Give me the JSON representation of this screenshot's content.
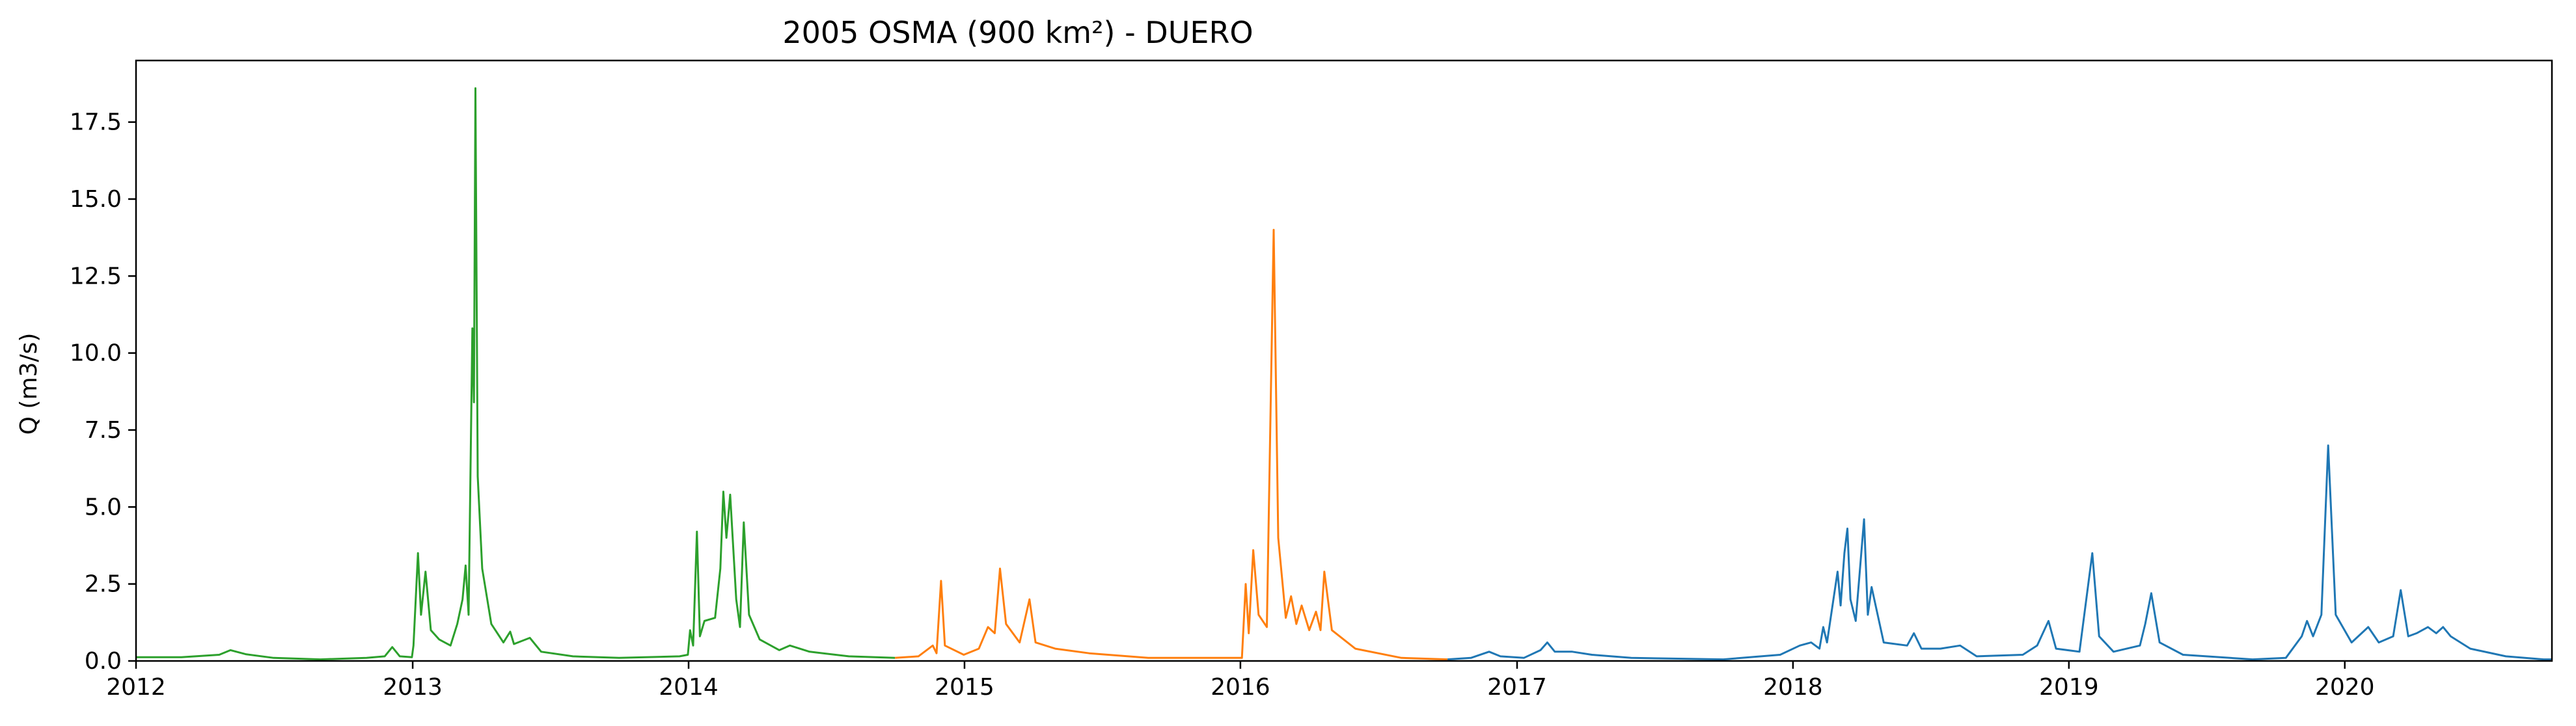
{
  "chart_data": {
    "type": "line",
    "title": "2005 OSMA (900 km²) - DUERO",
    "xlabel": "",
    "ylabel": "Q (m3/s)",
    "xlim": [
      "2012-01-01",
      "2020-10-01"
    ],
    "ylim": [
      0,
      19.5
    ],
    "x_ticks": [
      "2012",
      "2013",
      "2014",
      "2015",
      "2016",
      "2017",
      "2018",
      "2019",
      "2020"
    ],
    "y_ticks": [
      "0.0",
      "2.5",
      "5.0",
      "7.5",
      "10.0",
      "12.5",
      "15.0",
      "17.5"
    ],
    "grid": false,
    "legend": "none",
    "series": [
      {
        "color": "#2ca02c",
        "points": [
          [
            "2012-01-01",
            0.12
          ],
          [
            "2012-03-01",
            0.12
          ],
          [
            "2012-04-20",
            0.2
          ],
          [
            "2012-05-05",
            0.35
          ],
          [
            "2012-05-25",
            0.22
          ],
          [
            "2012-07-01",
            0.1
          ],
          [
            "2012-09-01",
            0.05
          ],
          [
            "2012-11-01",
            0.1
          ],
          [
            "2012-11-25",
            0.15
          ],
          [
            "2012-12-05",
            0.45
          ],
          [
            "2012-12-15",
            0.15
          ],
          [
            "2012-12-31",
            0.12
          ],
          [
            "2013-01-02",
            0.5
          ],
          [
            "2013-01-08",
            3.5
          ],
          [
            "2013-01-12",
            1.5
          ],
          [
            "2013-01-18",
            2.9
          ],
          [
            "2013-01-25",
            1.0
          ],
          [
            "2013-02-05",
            0.7
          ],
          [
            "2013-02-20",
            0.5
          ],
          [
            "2013-03-01",
            1.2
          ],
          [
            "2013-03-08",
            2.0
          ],
          [
            "2013-03-12",
            3.1
          ],
          [
            "2013-03-16",
            1.5
          ],
          [
            "2013-03-21",
            10.8
          ],
          [
            "2013-03-23",
            8.4
          ],
          [
            "2013-03-25",
            18.6
          ],
          [
            "2013-03-28",
            6.0
          ],
          [
            "2013-04-03",
            3.0
          ],
          [
            "2013-04-15",
            1.2
          ],
          [
            "2013-05-01",
            0.6
          ],
          [
            "2013-05-10",
            0.95
          ],
          [
            "2013-05-15",
            0.55
          ],
          [
            "2013-06-05",
            0.75
          ],
          [
            "2013-06-20",
            0.3
          ],
          [
            "2013-08-01",
            0.15
          ],
          [
            "2013-10-01",
            0.1
          ],
          [
            "2013-12-20",
            0.15
          ],
          [
            "2013-12-31",
            0.2
          ],
          [
            "2014-01-03",
            1.0
          ],
          [
            "2014-01-07",
            0.5
          ],
          [
            "2014-01-12",
            4.2
          ],
          [
            "2014-01-16",
            0.8
          ],
          [
            "2014-01-22",
            1.3
          ],
          [
            "2014-02-05",
            1.4
          ],
          [
            "2014-02-12",
            3.0
          ],
          [
            "2014-02-16",
            5.5
          ],
          [
            "2014-02-20",
            4.0
          ],
          [
            "2014-02-25",
            5.4
          ],
          [
            "2014-03-05",
            2.0
          ],
          [
            "2014-03-10",
            1.1
          ],
          [
            "2014-03-15",
            4.5
          ],
          [
            "2014-03-22",
            1.5
          ],
          [
            "2014-04-05",
            0.7
          ],
          [
            "2014-05-01",
            0.35
          ],
          [
            "2014-05-15",
            0.5
          ],
          [
            "2014-06-10",
            0.3
          ],
          [
            "2014-08-01",
            0.15
          ],
          [
            "2014-10-01",
            0.1
          ]
        ]
      },
      {
        "color": "#ff7f0e",
        "points": [
          [
            "2014-10-01",
            0.1
          ],
          [
            "2014-11-01",
            0.15
          ],
          [
            "2014-11-20",
            0.5
          ],
          [
            "2014-11-25",
            0.25
          ],
          [
            "2014-12-01",
            2.6
          ],
          [
            "2014-12-06",
            0.5
          ],
          [
            "2014-12-31",
            0.2
          ],
          [
            "2015-01-20",
            0.4
          ],
          [
            "2015-02-01",
            1.1
          ],
          [
            "2015-02-10",
            0.9
          ],
          [
            "2015-02-17",
            3.0
          ],
          [
            "2015-02-25",
            1.2
          ],
          [
            "2015-03-15",
            0.6
          ],
          [
            "2015-03-28",
            2.0
          ],
          [
            "2015-04-05",
            0.6
          ],
          [
            "2015-05-01",
            0.4
          ],
          [
            "2015-06-15",
            0.25
          ],
          [
            "2015-09-01",
            0.1
          ],
          [
            "2015-12-31",
            0.1
          ],
          [
            "2016-01-03",
            0.1
          ],
          [
            "2016-01-08",
            2.5
          ],
          [
            "2016-01-12",
            0.9
          ],
          [
            "2016-01-18",
            3.6
          ],
          [
            "2016-01-25",
            1.5
          ],
          [
            "2016-02-05",
            1.1
          ],
          [
            "2016-02-14",
            14.0
          ],
          [
            "2016-02-20",
            4.0
          ],
          [
            "2016-03-01",
            1.4
          ],
          [
            "2016-03-08",
            2.1
          ],
          [
            "2016-03-15",
            1.2
          ],
          [
            "2016-03-22",
            1.8
          ],
          [
            "2016-04-01",
            1.0
          ],
          [
            "2016-04-10",
            1.6
          ],
          [
            "2016-04-16",
            1.0
          ],
          [
            "2016-04-21",
            2.9
          ],
          [
            "2016-05-01",
            1.0
          ],
          [
            "2016-06-01",
            0.4
          ],
          [
            "2016-08-01",
            0.1
          ],
          [
            "2016-10-01",
            0.05
          ]
        ]
      },
      {
        "color": "#1f77b4",
        "points": [
          [
            "2016-10-01",
            0.05
          ],
          [
            "2016-11-01",
            0.1
          ],
          [
            "2016-11-25",
            0.3
          ],
          [
            "2016-12-10",
            0.15
          ],
          [
            "2017-01-10",
            0.1
          ],
          [
            "2017-02-01",
            0.35
          ],
          [
            "2017-02-10",
            0.6
          ],
          [
            "2017-02-20",
            0.3
          ],
          [
            "2017-03-15",
            0.3
          ],
          [
            "2017-04-10",
            0.2
          ],
          [
            "2017-06-01",
            0.1
          ],
          [
            "2017-10-01",
            0.05
          ],
          [
            "2017-12-15",
            0.2
          ],
          [
            "2018-01-10",
            0.5
          ],
          [
            "2018-01-25",
            0.6
          ],
          [
            "2018-02-05",
            0.4
          ],
          [
            "2018-02-10",
            1.1
          ],
          [
            "2018-02-15",
            0.6
          ],
          [
            "2018-03-01",
            2.9
          ],
          [
            "2018-03-05",
            1.8
          ],
          [
            "2018-03-10",
            3.5
          ],
          [
            "2018-03-14",
            4.3
          ],
          [
            "2018-03-18",
            2.0
          ],
          [
            "2018-03-25",
            1.3
          ],
          [
            "2018-04-05",
            4.6
          ],
          [
            "2018-04-10",
            1.5
          ],
          [
            "2018-04-15",
            2.4
          ],
          [
            "2018-05-01",
            0.6
          ],
          [
            "2018-06-01",
            0.5
          ],
          [
            "2018-06-10",
            0.9
          ],
          [
            "2018-06-20",
            0.4
          ],
          [
            "2018-07-15",
            0.4
          ],
          [
            "2018-08-10",
            0.5
          ],
          [
            "2018-09-01",
            0.15
          ],
          [
            "2018-11-01",
            0.2
          ],
          [
            "2018-11-20",
            0.5
          ],
          [
            "2018-12-05",
            1.3
          ],
          [
            "2018-12-15",
            0.4
          ],
          [
            "2019-01-15",
            0.3
          ],
          [
            "2019-02-01",
            3.5
          ],
          [
            "2019-02-10",
            0.8
          ],
          [
            "2019-03-01",
            0.3
          ],
          [
            "2019-04-05",
            0.5
          ],
          [
            "2019-04-12",
            1.2
          ],
          [
            "2019-04-20",
            2.2
          ],
          [
            "2019-05-01",
            0.6
          ],
          [
            "2019-06-01",
            0.2
          ],
          [
            "2019-09-01",
            0.05
          ],
          [
            "2019-10-15",
            0.1
          ],
          [
            "2019-11-05",
            0.8
          ],
          [
            "2019-11-12",
            1.3
          ],
          [
            "2019-11-20",
            0.8
          ],
          [
            "2019-12-01",
            1.5
          ],
          [
            "2019-12-10",
            7.0
          ],
          [
            "2019-12-20",
            1.5
          ],
          [
            "2020-01-10",
            0.6
          ],
          [
            "2020-02-01",
            1.1
          ],
          [
            "2020-02-15",
            0.6
          ],
          [
            "2020-03-05",
            0.8
          ],
          [
            "2020-03-15",
            2.3
          ],
          [
            "2020-03-25",
            0.8
          ],
          [
            "2020-04-05",
            0.9
          ],
          [
            "2020-04-20",
            1.1
          ],
          [
            "2020-05-01",
            0.9
          ],
          [
            "2020-05-10",
            1.1
          ],
          [
            "2020-05-20",
            0.8
          ],
          [
            "2020-06-15",
            0.4
          ],
          [
            "2020-08-01",
            0.15
          ],
          [
            "2020-09-20",
            0.05
          ],
          [
            "2020-10-01",
            0.05
          ]
        ]
      }
    ]
  }
}
